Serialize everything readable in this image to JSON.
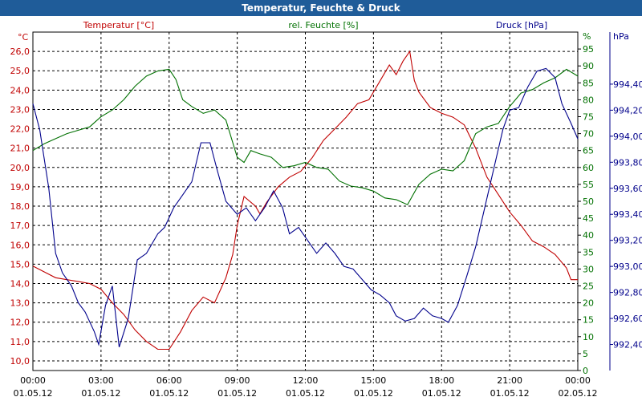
{
  "window": {
    "title": "Temperatur, Feuchte & Druck"
  },
  "chart_data": {
    "type": "line",
    "title": "Temperatur, Feuchte & Druck",
    "grid": true,
    "x": {
      "ticks": [
        {
          "time": "00:00",
          "date": "01.05.12"
        },
        {
          "time": "03:00",
          "date": "01.05.12"
        },
        {
          "time": "06:00",
          "date": "01.05.12"
        },
        {
          "time": "09:00",
          "date": "01.05.12"
        },
        {
          "time": "12:00",
          "date": "01.05.12"
        },
        {
          "time": "15:00",
          "date": "01.05.12"
        },
        {
          "time": "18:00",
          "date": "01.05.12"
        },
        {
          "time": "21:00",
          "date": "01.05.12"
        },
        {
          "time": "00:00",
          "date": "02.05.12"
        }
      ],
      "range_hours": [
        0,
        24
      ]
    },
    "axes": {
      "temperature": {
        "label": "Temperatur [°C]",
        "unit": "°C",
        "color": "#c00000",
        "range": [
          9.5,
          27
        ],
        "ticks": [
          "10,0",
          "11,0",
          "12,0",
          "13,0",
          "14,0",
          "15,0",
          "16,0",
          "17,0",
          "18,0",
          "19,0",
          "20,0",
          "21,0",
          "22,0",
          "23,0",
          "24,0",
          "25,0",
          "26,0"
        ]
      },
      "humidity": {
        "label": "rel. Feuchte [%]",
        "unit": "%",
        "color": "#007000",
        "range": [
          0,
          100
        ],
        "ticks": [
          "0",
          "5",
          "10",
          "15",
          "20",
          "25",
          "30",
          "35",
          "40",
          "45",
          "50",
          "55",
          "60",
          "65",
          "70",
          "75",
          "80",
          "85",
          "90",
          "95"
        ]
      },
      "pressure": {
        "label": "Druck [hPa]",
        "unit": "hPa",
        "color": "#00008b",
        "range": [
          992.2,
          994.8
        ],
        "ticks": [
          "992,40",
          "992,60",
          "992,80",
          "993,00",
          "993,20",
          "993,40",
          "993,60",
          "993,80",
          "994,00",
          "994,20",
          "994,40"
        ]
      }
    },
    "series": [
      {
        "name": "Temperatur [°C]",
        "axis": "temperature",
        "color": "#c00000",
        "points": [
          [
            0,
            14.9
          ],
          [
            0.5,
            14.6
          ],
          [
            1,
            14.3
          ],
          [
            1.5,
            14.2
          ],
          [
            2,
            14.1
          ],
          [
            2.5,
            14.0
          ],
          [
            3,
            13.7
          ],
          [
            3.5,
            13.0
          ],
          [
            4,
            12.4
          ],
          [
            4.5,
            11.6
          ],
          [
            5,
            11.0
          ],
          [
            5.5,
            10.6
          ],
          [
            6,
            10.6
          ],
          [
            6.5,
            11.5
          ],
          [
            7,
            12.6
          ],
          [
            7.5,
            13.3
          ],
          [
            8,
            13.0
          ],
          [
            8.5,
            14.3
          ],
          [
            8.8,
            15.5
          ],
          [
            9,
            17.0
          ],
          [
            9.3,
            18.5
          ],
          [
            9.8,
            18.0
          ],
          [
            10,
            17.6
          ],
          [
            10.3,
            18.2
          ],
          [
            10.8,
            19.0
          ],
          [
            11.3,
            19.5
          ],
          [
            11.8,
            19.8
          ],
          [
            12.3,
            20.5
          ],
          [
            12.8,
            21.4
          ],
          [
            13.3,
            22.0
          ],
          [
            13.8,
            22.6
          ],
          [
            14.3,
            23.3
          ],
          [
            14.8,
            23.5
          ],
          [
            15.3,
            24.5
          ],
          [
            15.7,
            25.3
          ],
          [
            16,
            24.8
          ],
          [
            16.3,
            25.5
          ],
          [
            16.6,
            26.0
          ],
          [
            16.8,
            24.5
          ],
          [
            17,
            23.9
          ],
          [
            17.5,
            23.1
          ],
          [
            18,
            22.8
          ],
          [
            18.5,
            22.6
          ],
          [
            19,
            22.2
          ],
          [
            19.5,
            21.0
          ],
          [
            20,
            19.5
          ],
          [
            20.5,
            18.6
          ],
          [
            21,
            17.7
          ],
          [
            21.5,
            17.0
          ],
          [
            22,
            16.2
          ],
          [
            22.5,
            15.9
          ],
          [
            23,
            15.5
          ],
          [
            23.5,
            14.8
          ],
          [
            23.7,
            14.2
          ],
          [
            24,
            14.2
          ]
        ]
      },
      {
        "name": "rel. Feuchte [%]",
        "axis": "humidity",
        "color": "#007000",
        "points": [
          [
            0,
            65
          ],
          [
            0.5,
            67
          ],
          [
            1,
            68.5
          ],
          [
            1.5,
            70
          ],
          [
            2,
            71
          ],
          [
            2.5,
            72
          ],
          [
            3,
            75
          ],
          [
            3.5,
            77
          ],
          [
            4,
            80
          ],
          [
            4.5,
            84
          ],
          [
            5,
            87
          ],
          [
            5.5,
            88.5
          ],
          [
            6,
            89
          ],
          [
            6.3,
            86
          ],
          [
            6.6,
            80
          ],
          [
            7,
            78
          ],
          [
            7.5,
            76
          ],
          [
            8,
            77
          ],
          [
            8.5,
            74
          ],
          [
            9,
            63
          ],
          [
            9.3,
            61.5
          ],
          [
            9.6,
            65
          ],
          [
            10,
            64
          ],
          [
            10.5,
            63
          ],
          [
            11,
            60
          ],
          [
            11.5,
            60.5
          ],
          [
            12,
            61.5
          ],
          [
            12.5,
            60
          ],
          [
            13,
            59.5
          ],
          [
            13.5,
            56
          ],
          [
            14,
            54.5
          ],
          [
            14.5,
            54
          ],
          [
            15,
            53
          ],
          [
            15.5,
            51
          ],
          [
            16,
            50.5
          ],
          [
            16.5,
            49
          ],
          [
            17,
            55
          ],
          [
            17.5,
            58
          ],
          [
            18,
            59.5
          ],
          [
            18.5,
            59
          ],
          [
            19,
            62
          ],
          [
            19.5,
            70
          ],
          [
            20,
            72
          ],
          [
            20.5,
            73
          ],
          [
            21,
            78
          ],
          [
            21.5,
            82
          ],
          [
            22,
            83
          ],
          [
            22.5,
            85
          ],
          [
            23,
            86.5
          ],
          [
            23.5,
            89
          ],
          [
            24,
            87
          ]
        ]
      },
      {
        "name": "Druck [hPa]",
        "axis": "pressure",
        "color": "#00008b",
        "points": [
          [
            0,
            994.25
          ],
          [
            0.3,
            994.05
          ],
          [
            0.7,
            993.6
          ],
          [
            1,
            993.1
          ],
          [
            1.3,
            992.95
          ],
          [
            1.7,
            992.85
          ],
          [
            2,
            992.72
          ],
          [
            2.3,
            992.65
          ],
          [
            2.7,
            992.5
          ],
          [
            2.9,
            992.4
          ],
          [
            3.2,
            992.7
          ],
          [
            3.5,
            992.85
          ],
          [
            3.8,
            992.38
          ],
          [
            4.2,
            992.6
          ],
          [
            4.6,
            993.05
          ],
          [
            5,
            993.1
          ],
          [
            5.5,
            993.25
          ],
          [
            5.8,
            993.3
          ],
          [
            6.2,
            993.45
          ],
          [
            6.6,
            993.55
          ],
          [
            7,
            993.65
          ],
          [
            7.4,
            993.95
          ],
          [
            7.8,
            993.95
          ],
          [
            8.1,
            993.75
          ],
          [
            8.5,
            993.5
          ],
          [
            9,
            993.4
          ],
          [
            9.4,
            993.45
          ],
          [
            9.8,
            993.35
          ],
          [
            10.2,
            993.45
          ],
          [
            10.6,
            993.58
          ],
          [
            11,
            993.45
          ],
          [
            11.3,
            993.25
          ],
          [
            11.7,
            993.3
          ],
          [
            12.1,
            993.2
          ],
          [
            12.5,
            993.1
          ],
          [
            12.9,
            993.18
          ],
          [
            13.3,
            993.1
          ],
          [
            13.7,
            993.0
          ],
          [
            14.1,
            992.98
          ],
          [
            14.5,
            992.9
          ],
          [
            14.9,
            992.82
          ],
          [
            15.3,
            992.78
          ],
          [
            15.7,
            992.72
          ],
          [
            16,
            992.62
          ],
          [
            16.4,
            992.58
          ],
          [
            16.8,
            992.6
          ],
          [
            17.2,
            992.68
          ],
          [
            17.6,
            992.62
          ],
          [
            18,
            992.6
          ],
          [
            18.3,
            992.57
          ],
          [
            18.7,
            992.7
          ],
          [
            19.1,
            992.92
          ],
          [
            19.5,
            993.15
          ],
          [
            19.9,
            993.45
          ],
          [
            20.3,
            993.75
          ],
          [
            20.7,
            994.05
          ],
          [
            21,
            994.2
          ],
          [
            21.4,
            994.22
          ],
          [
            21.8,
            994.38
          ],
          [
            22.2,
            994.5
          ],
          [
            22.6,
            994.52
          ],
          [
            23,
            994.45
          ],
          [
            23.3,
            994.25
          ],
          [
            23.7,
            994.1
          ],
          [
            24,
            993.98
          ]
        ]
      }
    ]
  }
}
